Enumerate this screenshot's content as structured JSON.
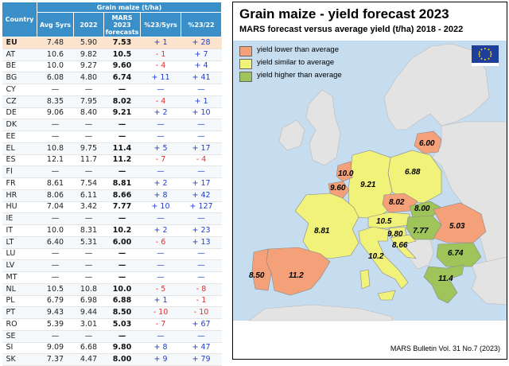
{
  "table": {
    "header": {
      "country": "Country",
      "group": "Grain maize (t/ha)",
      "avg": "Avg 5yrs",
      "y2022": "2022",
      "mars_lines": [
        "MARS",
        "2023",
        "forecasts"
      ],
      "vs5": "%23/5yrs",
      "vs22": "%23/22"
    },
    "rows": [
      {
        "c": "EU",
        "avg": "7.48",
        "y22": "5.90",
        "mars": "7.53",
        "d5": "+ 1",
        "d22": "+ 28"
      },
      {
        "c": "AT",
        "avg": "10.6",
        "y22": "9.82",
        "mars": "10.5",
        "d5": "- 1",
        "d22": "+ 7"
      },
      {
        "c": "BE",
        "avg": "10.0",
        "y22": "9.27",
        "mars": "9.60",
        "d5": "- 4",
        "d22": "+ 4"
      },
      {
        "c": "BG",
        "avg": "6.08",
        "y22": "4.80",
        "mars": "6.74",
        "d5": "+ 11",
        "d22": "+ 41"
      },
      {
        "c": "CY",
        "avg": "—",
        "y22": "—",
        "mars": "—",
        "d5": "—",
        "d22": "—"
      },
      {
        "c": "CZ",
        "avg": "8.35",
        "y22": "7.95",
        "mars": "8.02",
        "d5": "- 4",
        "d22": "+ 1"
      },
      {
        "c": "DE",
        "avg": "9.06",
        "y22": "8.40",
        "mars": "9.21",
        "d5": "+ 2",
        "d22": "+ 10"
      },
      {
        "c": "DK",
        "avg": "—",
        "y22": "—",
        "mars": "—",
        "d5": "—",
        "d22": "—"
      },
      {
        "c": "EE",
        "avg": "—",
        "y22": "—",
        "mars": "—",
        "d5": "—",
        "d22": "—"
      },
      {
        "c": "EL",
        "avg": "10.8",
        "y22": "9.75",
        "mars": "11.4",
        "d5": "+ 5",
        "d22": "+ 17"
      },
      {
        "c": "ES",
        "avg": "12.1",
        "y22": "11.7",
        "mars": "11.2",
        "d5": "- 7",
        "d22": "- 4"
      },
      {
        "c": "FI",
        "avg": "—",
        "y22": "—",
        "mars": "—",
        "d5": "—",
        "d22": "—"
      },
      {
        "c": "FR",
        "avg": "8.61",
        "y22": "7.54",
        "mars": "8.81",
        "d5": "+ 2",
        "d22": "+ 17"
      },
      {
        "c": "HR",
        "avg": "8.06",
        "y22": "6.11",
        "mars": "8.66",
        "d5": "+ 8",
        "d22": "+ 42"
      },
      {
        "c": "HU",
        "avg": "7.04",
        "y22": "3.42",
        "mars": "7.77",
        "d5": "+ 10",
        "d22": "+ 127"
      },
      {
        "c": "IE",
        "avg": "—",
        "y22": "—",
        "mars": "—",
        "d5": "—",
        "d22": "—"
      },
      {
        "c": "IT",
        "avg": "10.0",
        "y22": "8.31",
        "mars": "10.2",
        "d5": "+ 2",
        "d22": "+ 23"
      },
      {
        "c": "LT",
        "avg": "6.40",
        "y22": "5.31",
        "mars": "6.00",
        "d5": "- 6",
        "d22": "+ 13"
      },
      {
        "c": "LU",
        "avg": "—",
        "y22": "—",
        "mars": "—",
        "d5": "—",
        "d22": "—"
      },
      {
        "c": "LV",
        "avg": "—",
        "y22": "—",
        "mars": "—",
        "d5": "—",
        "d22": "—"
      },
      {
        "c": "MT",
        "avg": "—",
        "y22": "—",
        "mars": "—",
        "d5": "—",
        "d22": "—"
      },
      {
        "c": "NL",
        "avg": "10.5",
        "y22": "10.8",
        "mars": "10.0",
        "d5": "- 5",
        "d22": "- 8"
      },
      {
        "c": "PL",
        "avg": "6.79",
        "y22": "6.98",
        "mars": "6.88",
        "d5": "+ 1",
        "d22": "- 1"
      },
      {
        "c": "PT",
        "avg": "9.43",
        "y22": "9.44",
        "mars": "8.50",
        "d5": "- 10",
        "d22": "- 10"
      },
      {
        "c": "RO",
        "avg": "5.39",
        "y22": "3.01",
        "mars": "5.03",
        "d5": "- 7",
        "d22": "+ 67"
      },
      {
        "c": "SE",
        "avg": "—",
        "y22": "—",
        "mars": "—",
        "d5": "—",
        "d22": "—"
      },
      {
        "c": "SI",
        "avg": "9.09",
        "y22": "6.68",
        "mars": "9.80",
        "d5": "+ 8",
        "d22": "+ 47"
      },
      {
        "c": "SK",
        "avg": "7.37",
        "y22": "4.47",
        "mars": "8.00",
        "d5": "+ 9",
        "d22": "+ 79"
      }
    ]
  },
  "map": {
    "title": "Grain maize - yield forecast 2023",
    "subtitle": "MARS forecast versus average yield (t/ha) 2018 - 2022",
    "legend": [
      {
        "label": "yield lower than average",
        "color": "#f4a079"
      },
      {
        "label": "yield similar to average",
        "color": "#f1f27a"
      },
      {
        "label": "yield higher than average",
        "color": "#9ec45a"
      }
    ],
    "colors": {
      "sea": "#c6dcef",
      "land_other": "#e3e3e3",
      "lower": "#f4a079",
      "similar": "#f1f27a",
      "higher": "#9ec45a",
      "eu_flag": "#1d3f99",
      "eu_stars": "#ffd500"
    },
    "values": {
      "LT": "6.00",
      "NL": "10.0",
      "BE": "9.60",
      "DE": "9.21",
      "PL": "6.88",
      "CZ": "8.02",
      "SK": "8.00",
      "AT": "10.5",
      "HU": "7.77",
      "SI": "9.80",
      "HR": "8.66",
      "RO": "5.03",
      "FR": "8.81",
      "IT": "10.2",
      "BG": "6.74",
      "EL": "11.4",
      "PT": "8.50",
      "ES": "11.2"
    },
    "footer": "MARS Bulletin Vol. 31 No.7 (2023)"
  }
}
